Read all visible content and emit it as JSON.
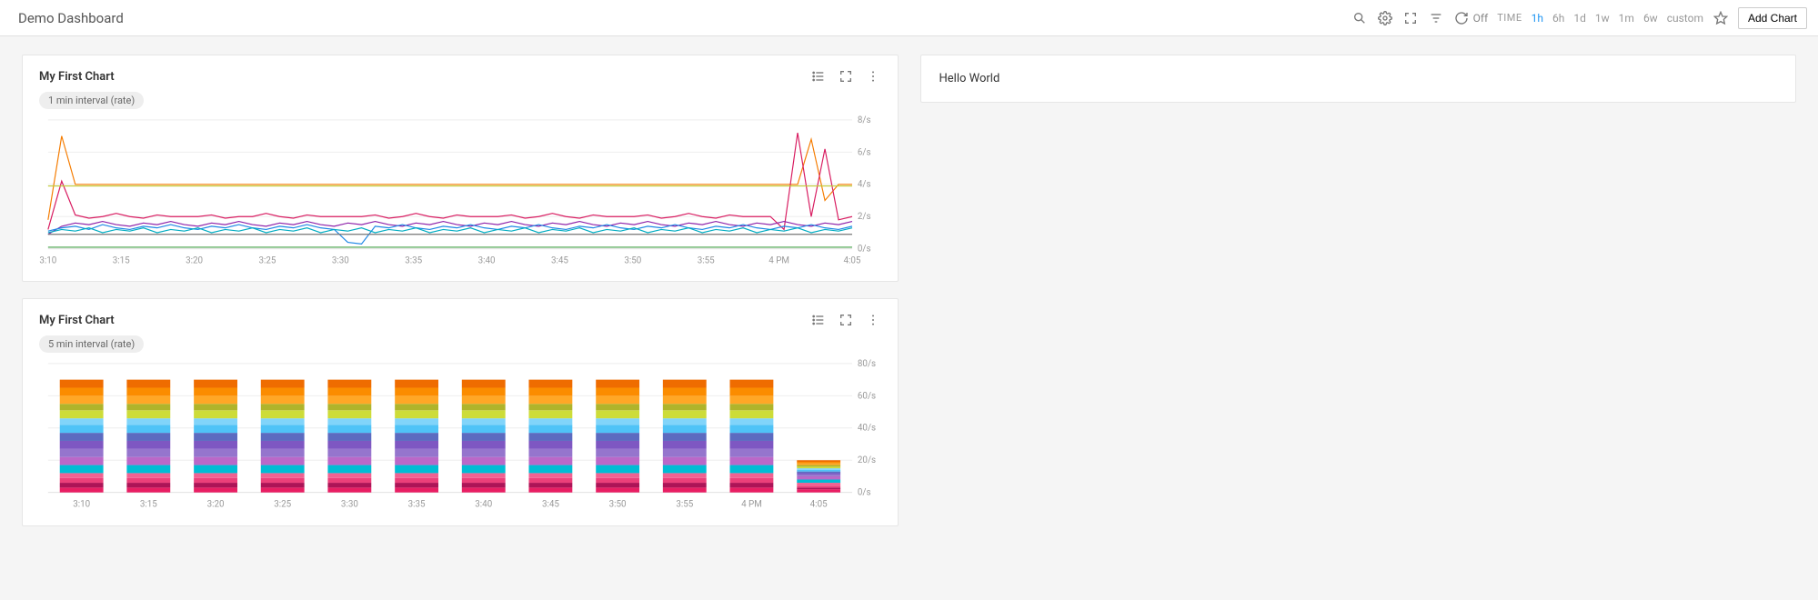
{
  "header": {
    "title": "Demo Dashboard",
    "refresh_state": "Off",
    "time_label": "TIME",
    "time_options": [
      "1h",
      "6h",
      "1d",
      "1w",
      "1m",
      "6w",
      "custom"
    ],
    "time_active_index": 0,
    "add_chart_label": "Add Chart"
  },
  "text_panel": {
    "content": "Hello World"
  },
  "chart1": {
    "title": "My First Chart",
    "badge": "1 min interval (rate)",
    "type": "line",
    "ylim": [
      0,
      8
    ],
    "ytick_step": 2,
    "ytick_suffix": "/s",
    "x_labels": [
      "3:10",
      "3:15",
      "3:20",
      "3:25",
      "3:30",
      "3:35",
      "3:40",
      "3:45",
      "3:50",
      "3:55",
      "4 PM",
      "4:05"
    ],
    "background_color": "#ffffff",
    "grid_color": "#eeeeee",
    "line_width": 1.2,
    "series": [
      {
        "color": "#f57c00",
        "values": [
          1.8,
          7.0,
          4.0,
          4.0,
          4.0,
          4.0,
          4.0,
          4.0,
          4.0,
          4.0,
          4.0,
          4.0,
          4.0,
          4.0,
          4.0,
          4.0,
          4.0,
          4.0,
          4.0,
          4.0,
          4.0,
          4.0,
          4.0,
          4.0,
          4.0,
          4.0,
          4.0,
          4.0,
          4.0,
          4.0,
          4.0,
          4.0,
          4.0,
          4.0,
          4.0,
          4.0,
          4.0,
          4.0,
          4.0,
          4.0,
          4.0,
          4.0,
          4.0,
          4.0,
          4.0,
          4.0,
          4.0,
          4.0,
          4.0,
          4.0,
          4.0,
          4.0,
          4.0,
          4.0,
          4.0,
          4.0,
          6.8,
          3.0,
          4.0,
          4.0
        ]
      },
      {
        "color": "#d81b60",
        "values": [
          1.2,
          4.2,
          2.1,
          1.9,
          2.0,
          2.2,
          2.0,
          1.9,
          2.1,
          2.0,
          2.0,
          2.0,
          2.1,
          1.9,
          2.0,
          2.0,
          2.2,
          2.0,
          1.9,
          2.1,
          2.0,
          2.0,
          2.0,
          2.0,
          2.1,
          1.9,
          2.0,
          2.2,
          2.0,
          1.9,
          2.1,
          2.0,
          2.0,
          2.0,
          2.1,
          1.9,
          2.0,
          2.2,
          2.0,
          1.9,
          2.1,
          2.0,
          2.0,
          2.0,
          2.1,
          1.9,
          2.0,
          2.2,
          2.0,
          1.9,
          2.1,
          2.0,
          2.0,
          2.0,
          1.2,
          7.2,
          2.0,
          6.2,
          1.8,
          2.0
        ]
      },
      {
        "color": "#8e24aa",
        "values": [
          0.9,
          1.4,
          1.6,
          1.5,
          1.7,
          1.5,
          1.4,
          1.6,
          1.5,
          1.7,
          1.5,
          1.4,
          1.6,
          1.5,
          1.7,
          1.5,
          1.4,
          1.6,
          1.5,
          1.7,
          1.5,
          1.4,
          1.6,
          1.5,
          1.7,
          1.5,
          1.4,
          1.6,
          1.5,
          1.7,
          1.5,
          1.4,
          1.6,
          1.5,
          1.7,
          1.5,
          1.4,
          1.6,
          1.5,
          1.7,
          1.5,
          1.4,
          1.6,
          1.5,
          1.7,
          1.5,
          1.4,
          1.6,
          1.5,
          1.7,
          1.5,
          1.4,
          1.6,
          1.5,
          1.7,
          1.5,
          1.4,
          1.6,
          1.5,
          1.7
        ]
      },
      {
        "color": "#1e88e5",
        "values": [
          1.1,
          1.3,
          1.4,
          1.2,
          1.5,
          1.3,
          1.2,
          1.4,
          1.3,
          1.5,
          1.3,
          1.2,
          1.4,
          1.3,
          1.5,
          1.3,
          1.2,
          1.4,
          1.3,
          1.5,
          1.3,
          1.2,
          0.4,
          0.3,
          1.4,
          1.3,
          1.5,
          1.3,
          1.2,
          1.4,
          1.3,
          1.5,
          1.3,
          1.2,
          1.4,
          1.3,
          1.5,
          1.3,
          1.2,
          1.4,
          1.3,
          1.5,
          1.3,
          1.2,
          1.4,
          1.3,
          1.5,
          1.3,
          1.2,
          1.4,
          1.3,
          1.5,
          1.3,
          1.2,
          1.4,
          1.3,
          1.5,
          1.3,
          1.2,
          1.4
        ]
      },
      {
        "color": "#43a047",
        "values": [
          0.1,
          0.1,
          0.1,
          0.1,
          0.1,
          0.1,
          0.1,
          0.1,
          0.1,
          0.1,
          0.1,
          0.1,
          0.1,
          0.1,
          0.1,
          0.1,
          0.1,
          0.1,
          0.1,
          0.1,
          0.1,
          0.1,
          0.1,
          0.1,
          0.1,
          0.1,
          0.1,
          0.1,
          0.1,
          0.1,
          0.1,
          0.1,
          0.1,
          0.1,
          0.1,
          0.1,
          0.1,
          0.1,
          0.1,
          0.1,
          0.1,
          0.1,
          0.1,
          0.1,
          0.1,
          0.1,
          0.1,
          0.1,
          0.1,
          0.1,
          0.1,
          0.1,
          0.1,
          0.1,
          0.1,
          0.1,
          0.1,
          0.1,
          0.1,
          0.1
        ]
      },
      {
        "color": "#757575",
        "values": [
          0.9,
          0.9,
          0.9,
          0.9,
          0.9,
          0.9,
          0.9,
          0.9,
          0.9,
          0.9,
          0.9,
          0.9,
          0.9,
          0.9,
          0.9,
          0.9,
          0.9,
          0.9,
          0.9,
          0.9,
          0.9,
          0.9,
          0.9,
          0.9,
          0.9,
          0.9,
          0.9,
          0.9,
          0.9,
          0.9,
          0.9,
          0.9,
          0.9,
          0.9,
          0.9,
          0.9,
          0.9,
          0.9,
          0.9,
          0.9,
          0.9,
          0.9,
          0.9,
          0.9,
          0.9,
          0.9,
          0.9,
          0.9,
          0.9,
          0.9,
          0.9,
          0.9,
          0.9,
          0.9,
          0.9,
          0.9,
          0.9,
          0.9,
          0.9,
          0.9
        ]
      },
      {
        "color": "#00acc1",
        "values": [
          1.0,
          1.2,
          1.1,
          1.3,
          1.0,
          1.2,
          1.1,
          1.3,
          1.0,
          1.2,
          1.1,
          1.3,
          1.0,
          1.2,
          1.1,
          1.3,
          1.0,
          1.2,
          1.1,
          1.3,
          1.0,
          1.2,
          1.1,
          1.3,
          1.0,
          1.2,
          1.1,
          1.3,
          1.0,
          1.2,
          1.1,
          1.3,
          1.0,
          1.2,
          1.1,
          1.3,
          1.0,
          1.2,
          1.1,
          1.3,
          1.0,
          1.2,
          1.1,
          1.3,
          1.0,
          1.2,
          1.1,
          1.3,
          1.0,
          1.2,
          1.1,
          1.3,
          1.0,
          1.2,
          1.1,
          1.3,
          1.0,
          1.2,
          1.1,
          1.3
        ]
      },
      {
        "color": "#c0ca33",
        "values": [
          3.9,
          3.9,
          3.9,
          3.9,
          3.9,
          3.9,
          3.9,
          3.9,
          3.9,
          3.9,
          3.9,
          3.9,
          3.9,
          3.9,
          3.9,
          3.9,
          3.9,
          3.9,
          3.9,
          3.9,
          3.9,
          3.9,
          3.9,
          3.9,
          3.9,
          3.9,
          3.9,
          3.9,
          3.9,
          3.9,
          3.9,
          3.9,
          3.9,
          3.9,
          3.9,
          3.9,
          3.9,
          3.9,
          3.9,
          3.9,
          3.9,
          3.9,
          3.9,
          3.9,
          3.9,
          3.9,
          3.9,
          3.9,
          3.9,
          3.9,
          3.9,
          3.9,
          3.9,
          3.9,
          3.9,
          3.9,
          3.9,
          3.9,
          3.9,
          3.9
        ]
      }
    ]
  },
  "chart2": {
    "title": "My First Chart",
    "badge": "5 min interval (rate)",
    "type": "stacked-bar",
    "ylim": [
      0,
      80
    ],
    "ytick_step": 20,
    "ytick_suffix": "/s",
    "x_labels": [
      "3:10",
      "3:15",
      "3:20",
      "3:25",
      "3:30",
      "3:35",
      "3:40",
      "3:45",
      "3:50",
      "3:55",
      "4 PM",
      "4:05"
    ],
    "background_color": "#ffffff",
    "grid_color": "#eeeeee",
    "bar_width": 0.65,
    "segment_colors": [
      "#e91e63",
      "#ad1457",
      "#ec407a",
      "#f06292",
      "#00bcd4",
      "#ba68c8",
      "#9575cd",
      "#7e57c2",
      "#5c6bc0",
      "#4fc3f7",
      "#81d4fa",
      "#cddc39",
      "#afb42b",
      "#ffa726",
      "#fb8c00",
      "#ef6c00"
    ],
    "bars": [
      {
        "segments": [
          3,
          3,
          3,
          3,
          5,
          5,
          5,
          5,
          5,
          5,
          4,
          5,
          4,
          5,
          5,
          5
        ]
      },
      {
        "segments": [
          3,
          3,
          3,
          3,
          5,
          5,
          5,
          5,
          5,
          5,
          4,
          5,
          4,
          5,
          5,
          5
        ]
      },
      {
        "segments": [
          3,
          3,
          3,
          3,
          5,
          5,
          5,
          5,
          5,
          5,
          4,
          5,
          4,
          5,
          5,
          5
        ]
      },
      {
        "segments": [
          3,
          3,
          3,
          3,
          5,
          5,
          5,
          5,
          5,
          5,
          4,
          5,
          4,
          5,
          5,
          5
        ]
      },
      {
        "segments": [
          3,
          3,
          3,
          3,
          5,
          5,
          5,
          5,
          5,
          5,
          4,
          5,
          4,
          5,
          5,
          5
        ]
      },
      {
        "segments": [
          3,
          3,
          3,
          3,
          5,
          5,
          5,
          5,
          5,
          5,
          4,
          5,
          4,
          5,
          5,
          5
        ]
      },
      {
        "segments": [
          3,
          3,
          3,
          3,
          5,
          5,
          5,
          5,
          5,
          5,
          4,
          5,
          4,
          5,
          5,
          5
        ]
      },
      {
        "segments": [
          3,
          3,
          3,
          3,
          5,
          5,
          5,
          5,
          5,
          5,
          4,
          5,
          4,
          5,
          5,
          5
        ]
      },
      {
        "segments": [
          3,
          3,
          3,
          3,
          5,
          5,
          5,
          5,
          5,
          5,
          4,
          5,
          4,
          5,
          5,
          5
        ]
      },
      {
        "segments": [
          3,
          3,
          3,
          3,
          5,
          5,
          5,
          5,
          5,
          5,
          4,
          5,
          4,
          5,
          5,
          5
        ]
      },
      {
        "segments": [
          3,
          3,
          3,
          3,
          5,
          5,
          5,
          5,
          5,
          5,
          4,
          5,
          4,
          5,
          5,
          5
        ]
      },
      {
        "segments": [
          2,
          1,
          1,
          2,
          2,
          2,
          1,
          1,
          1,
          1,
          1,
          1,
          1,
          1,
          1,
          1
        ]
      }
    ]
  }
}
